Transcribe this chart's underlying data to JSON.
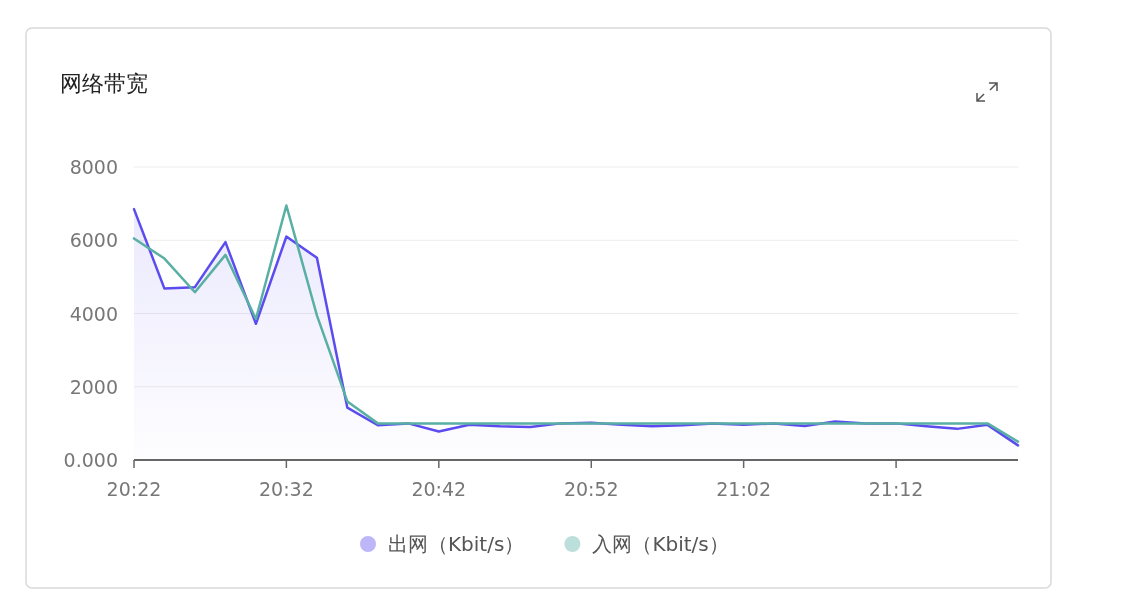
{
  "chart_data": {
    "type": "line",
    "title": "网络带宽",
    "x": [
      20.3667,
      20.4,
      20.4333,
      20.4667,
      20.5,
      20.5333,
      20.5667,
      20.6,
      20.6333,
      20.6667,
      20.7,
      20.7333,
      20.7667,
      20.8,
      20.8333,
      20.8667,
      20.9,
      20.9333,
      20.9667,
      21.0,
      21.0333,
      21.0667,
      21.1,
      21.1333,
      21.1667,
      21.2,
      21.2333,
      21.2667,
      21.3,
      21.3333
    ],
    "series": [
      {
        "name": "出网（Kbit/s）",
        "color": "#5b4cf0",
        "type": "area",
        "values": [
          6850,
          4680,
          4720,
          5950,
          3720,
          6100,
          5520,
          1430,
          950,
          1000,
          780,
          960,
          920,
          900,
          1000,
          1020,
          960,
          920,
          950,
          1000,
          960,
          1000,
          930,
          1050,
          1000,
          1000,
          920,
          850,
          960,
          400
        ]
      },
      {
        "name": "入网（Kbit/s）",
        "color": "#5aafa5",
        "values": [
          6050,
          5500,
          4580,
          5600,
          3850,
          6950,
          3950,
          1600,
          1000,
          1000,
          1000,
          1000,
          1000,
          1000,
          1000,
          1000,
          1000,
          1000,
          1000,
          1000,
          1000,
          1000,
          1000,
          1000,
          1000,
          1000,
          1000,
          1000,
          1000,
          500
        ]
      }
    ],
    "xlim": [
      20.3667,
      21.3333
    ],
    "xticks": [
      {
        "value": 20.3667,
        "label": "20:22"
      },
      {
        "value": 20.5333,
        "label": "20:32"
      },
      {
        "value": 20.7,
        "label": "20:42"
      },
      {
        "value": 20.8667,
        "label": "20:52"
      },
      {
        "value": 21.0333,
        "label": "21:02"
      },
      {
        "value": 21.2,
        "label": "21:12"
      }
    ],
    "ylim": [
      0,
      8000
    ],
    "yticks": [
      {
        "value": 0,
        "label": "0.000"
      },
      2000,
      4000,
      6000,
      8000
    ],
    "grid": "y",
    "legend": "bottom",
    "marker": "none",
    "line_style": "solid"
  }
}
